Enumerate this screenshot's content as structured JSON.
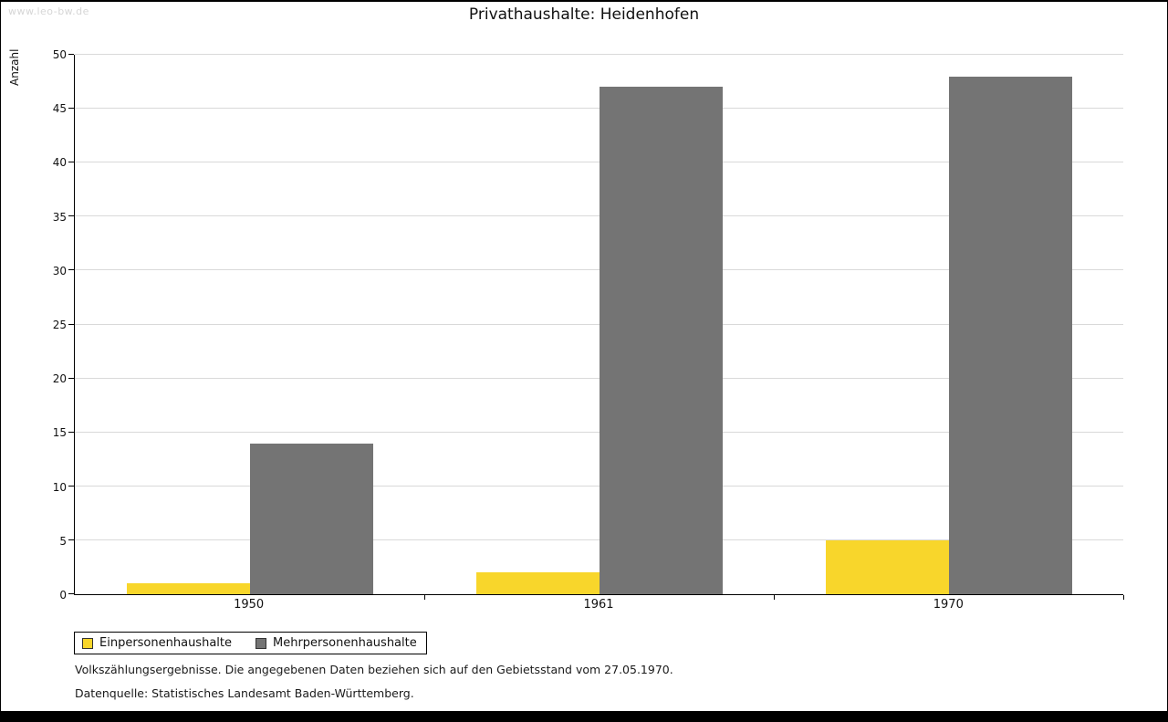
{
  "watermark": "www.leo-bw.de",
  "chart_data": {
    "type": "bar",
    "title": "Privathaushalte: Heidenhofen",
    "categories": [
      "1950",
      "1961",
      "1970"
    ],
    "series": [
      {
        "name": "Einpersonenhaushalte",
        "color": "#f8d62b",
        "values": [
          1,
          2,
          5
        ]
      },
      {
        "name": "Mehrpersonenhaushalte",
        "color": "#747474",
        "values": [
          14,
          47,
          48
        ]
      }
    ],
    "xlabel": "",
    "ylabel": "Anzahl",
    "ylim": [
      0,
      50
    ],
    "ytick_step": 5,
    "grid": true,
    "legend_position": "bottom-left"
  },
  "footnotes": [
    "Volkszählungsergebnisse. Die angegebenen Daten beziehen sich auf den Gebietsstand vom 27.05.1970.",
    "Datenquelle: Statistisches Landesamt Baden-Württemberg."
  ]
}
